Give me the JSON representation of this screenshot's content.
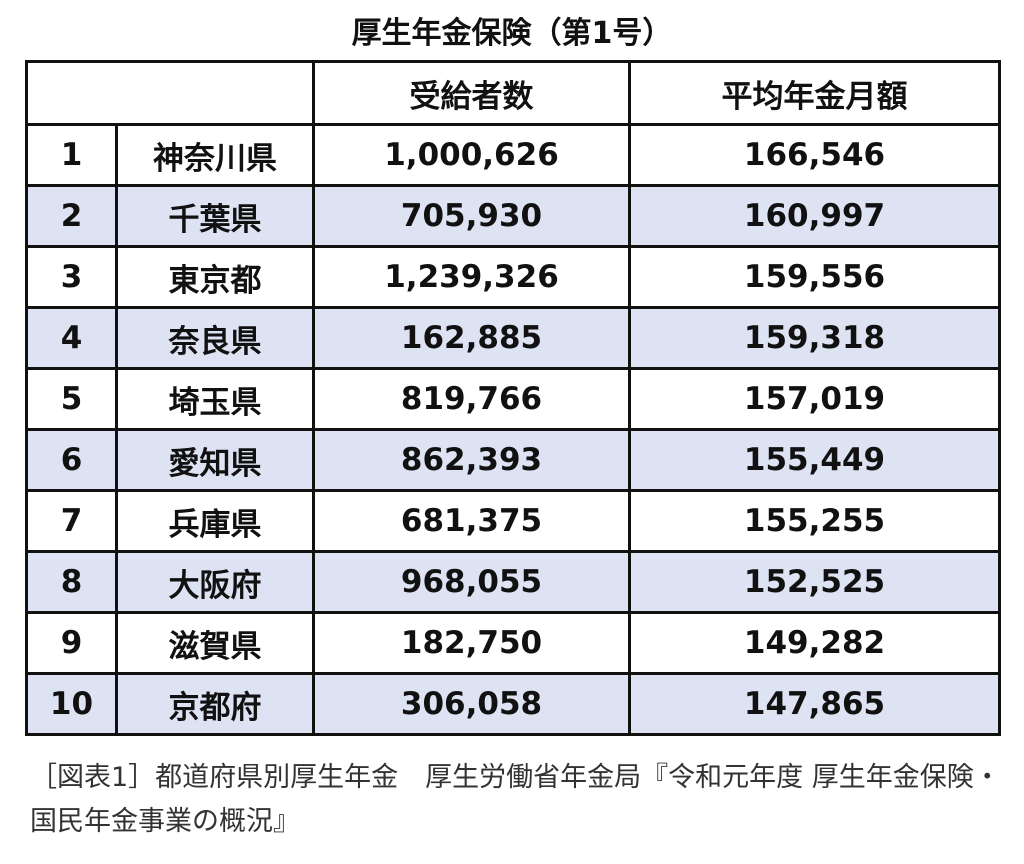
{
  "title": "厚生年金保険（第1号）",
  "table": {
    "header": [
      "受給者数",
      "平均年金月額"
    ],
    "rows": [
      [
        "1",
        "神奈川県",
        "1,000,626",
        "166,546"
      ],
      [
        "2",
        "千葉県",
        "705,930",
        "160,997"
      ],
      [
        "3",
        "東京都",
        "1,239,326",
        "159,556"
      ],
      [
        "4",
        "奈良県",
        "162,885",
        "159,318"
      ],
      [
        "5",
        "埼玉県",
        "819,766",
        "157,019"
      ],
      [
        "6",
        "愛知県",
        "862,393",
        "155,449"
      ],
      [
        "7",
        "兵庫県",
        "681,375",
        "155,255"
      ],
      [
        "8",
        "大阪府",
        "968,055",
        "152,525"
      ],
      [
        "9",
        "滋賀県",
        "182,750",
        "149,282"
      ],
      [
        "10",
        "京都府",
        "306,058",
        "147,865"
      ]
    ]
  },
  "caption": "［図表1］都道府県別厚生年金　厚生労働省年金局『令和元年度 厚生年金保険・国民年金事業の概況』"
}
